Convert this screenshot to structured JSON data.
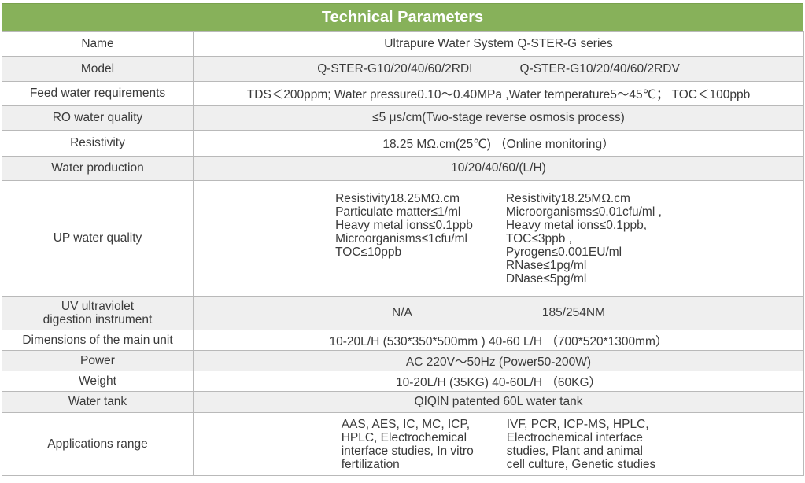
{
  "title": "Technical Parameters",
  "rows": {
    "name": {
      "label": "Name",
      "value": "Ultrapure Water System Q-STER-G series"
    },
    "model": {
      "label": "Model",
      "value_a": "Q-STER-G10/20/40/60/2RDI",
      "value_b": "Q-STER-G10/20/40/60/2RDV"
    },
    "feed": {
      "label": "Feed water requirements",
      "value": "TDS＜200ppm; Water pressure0.10～0.40MPa ,Water temperature5～45℃； TOC＜100ppb"
    },
    "ro": {
      "label": "RO water quality",
      "value": "≤5 μs/cm(Two-stage reverse osmosis process)"
    },
    "resistivity": {
      "label": "Resistivity",
      "value": "18.25 MΩ.cm(25℃) （Online monitoring）"
    },
    "production": {
      "label": "Water production",
      "value": "10/20/40/60/(L/H)"
    },
    "up": {
      "label": "UP water quality",
      "left": [
        "Resistivity18.25MΩ.cm",
        "Particulate matter≤1/ml",
        "Heavy metal ions≤0.1ppb",
        "Microorganisms≤1cfu/ml",
        "TOC≤10ppb"
      ],
      "right": [
        "Resistivity18.25MΩ.cm",
        "Microorganisms≤0.01cfu/ml ,",
        "Heavy metal ions≤0.1ppb,",
        "TOC≤3ppb ,",
        "Pyrogen≤0.001EU/ml",
        "RNase≤1pg/ml",
        "DNase≤5pg/ml"
      ]
    },
    "uv": {
      "label_line1": "UV ultraviolet",
      "label_line2": "digestion instrument",
      "value_a": "N/A",
      "value_b": "185/254NM"
    },
    "dimensions": {
      "label": "Dimensions of the main unit",
      "value": "10-20L/H (530*350*500mm )  40-60 L/H （700*520*1300mm）"
    },
    "power": {
      "label": "Power",
      "value": "AC 220V～50Hz (Power50-200W)"
    },
    "weight": {
      "label": "Weight",
      "value": "10-20L/H (35KG)  40-60L/H （60KG）"
    },
    "tank": {
      "label": "Water tank",
      "value": "QIQIN patented 60L water tank"
    },
    "applications": {
      "label": "Applications range",
      "left": [
        "AAS, AES, IC, MC, ICP,",
        "HPLC, Electrochemical",
        "interface studies, In vitro",
        "fertilization"
      ],
      "right": [
        "IVF, PCR, ICP-MS, HPLC,",
        "Electrochemical interface",
        "studies, Plant and animal",
        "cell culture, Genetic studies"
      ]
    }
  },
  "colors": {
    "header_bg": "#87b15a",
    "alt_row_bg": "#efefef",
    "border": "#b9b9b9"
  }
}
